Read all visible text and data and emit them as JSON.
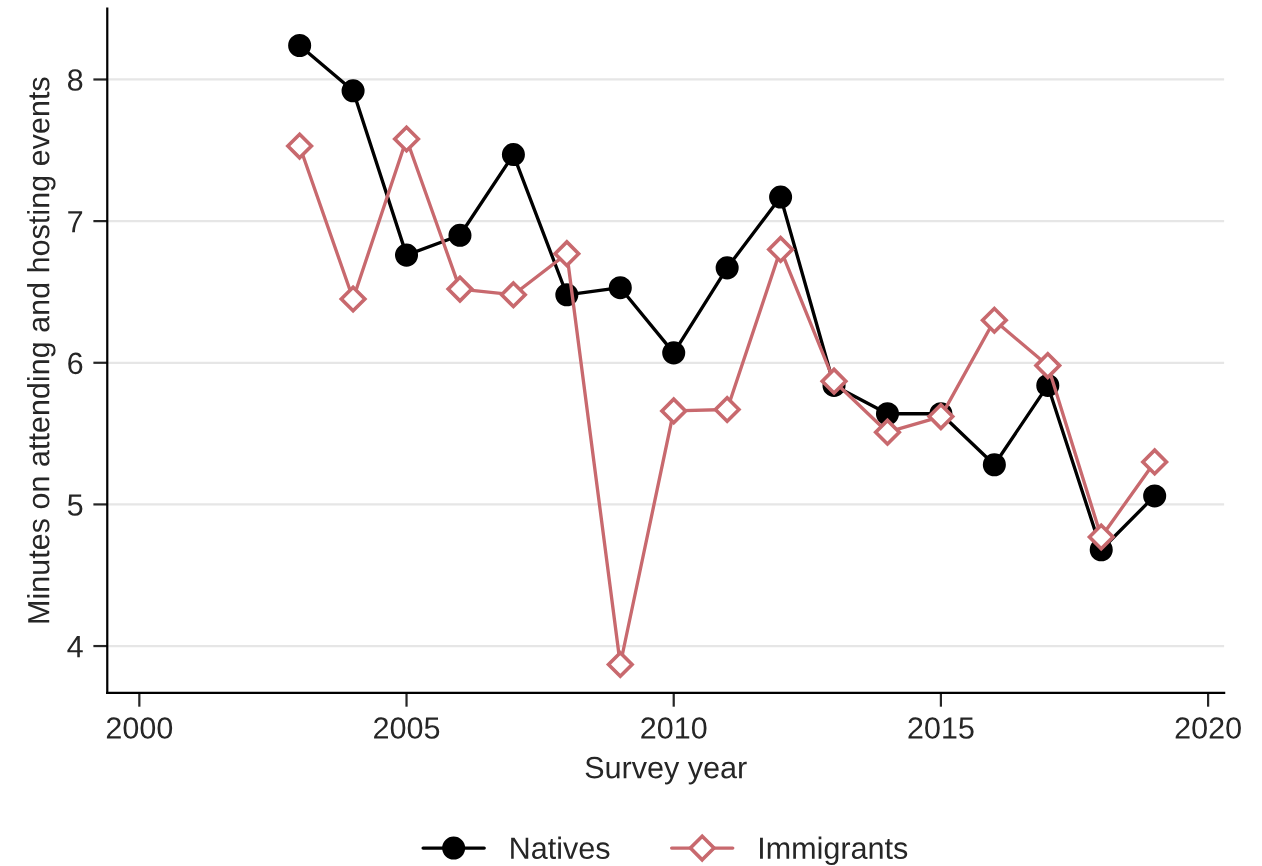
{
  "chart_data": {
    "type": "line",
    "xlabel": "Survey year",
    "ylabel": "Minutes on attending and hosting events",
    "x": [
      2003,
      2004,
      2005,
      2006,
      2007,
      2008,
      2009,
      2010,
      2011,
      2012,
      2013,
      2014,
      2015,
      2016,
      2017,
      2018,
      2019
    ],
    "series": [
      {
        "name": "Natives",
        "color": "#000000",
        "marker": "circle",
        "values": [
          8.24,
          7.92,
          6.76,
          6.9,
          7.47,
          6.48,
          6.53,
          6.07,
          6.67,
          7.17,
          5.84,
          5.64,
          5.64,
          5.28,
          5.84,
          4.68,
          5.06
        ]
      },
      {
        "name": "Immigrants",
        "color": "#c8696e",
        "marker": "diamond",
        "values": [
          7.53,
          6.45,
          7.58,
          6.52,
          6.48,
          6.77,
          3.87,
          5.66,
          5.67,
          6.8,
          5.87,
          5.51,
          5.62,
          6.3,
          5.98,
          4.77,
          5.3
        ]
      }
    ],
    "xlim": [
      1999.4,
      2020.3
    ],
    "xticks": [
      2000,
      2005,
      2010,
      2015,
      2020
    ],
    "ylim": [
      3.67,
      8.5
    ],
    "yticks": [
      4,
      5,
      6,
      7,
      8
    ],
    "grid": "y",
    "legend": "bottom",
    "line_style": "solid"
  }
}
